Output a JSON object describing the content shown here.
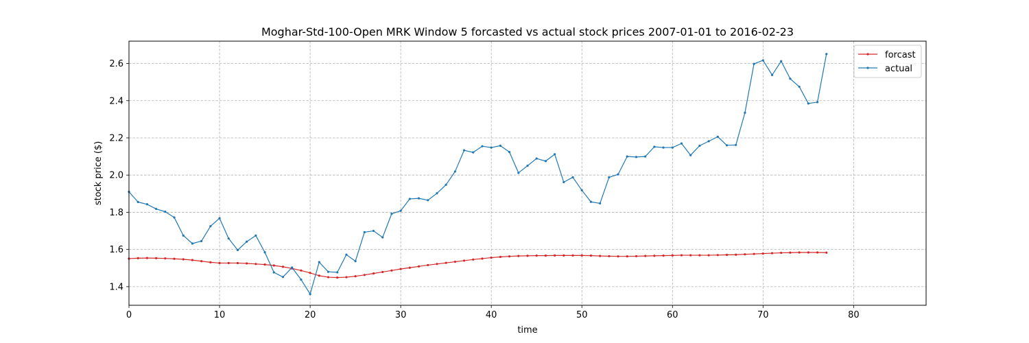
{
  "chart_data": {
    "type": "line",
    "title": "Moghar-Std-100-Open MRK Window 5 forcasted vs actual stock prices 2007-01-01 to 2016-02-23",
    "xlabel": "time",
    "ylabel": "stock price ($)",
    "xlim": [
      0,
      88
    ],
    "ylim": [
      1.3,
      2.72
    ],
    "xticks": [
      0,
      10,
      20,
      30,
      40,
      50,
      60,
      70,
      80
    ],
    "yticks": [
      1.4,
      1.6,
      1.8,
      2.0,
      2.2,
      2.4,
      2.6
    ],
    "grid": true,
    "legend_position": "top-right",
    "series": [
      {
        "name": "forcast",
        "color": "#d62728",
        "values": [
          1.551,
          1.553,
          1.554,
          1.553,
          1.552,
          1.55,
          1.547,
          1.543,
          1.537,
          1.531,
          1.527,
          1.527,
          1.527,
          1.525,
          1.522,
          1.519,
          1.514,
          1.507,
          1.498,
          1.487,
          1.474,
          1.459,
          1.451,
          1.449,
          1.451,
          1.456,
          1.463,
          1.471,
          1.479,
          1.487,
          1.495,
          1.502,
          1.509,
          1.516,
          1.522,
          1.528,
          1.534,
          1.54,
          1.546,
          1.551,
          1.556,
          1.56,
          1.563,
          1.565,
          1.566,
          1.567,
          1.567,
          1.568,
          1.568,
          1.568,
          1.568,
          1.567,
          1.565,
          1.564,
          1.563,
          1.563,
          1.564,
          1.565,
          1.566,
          1.567,
          1.568,
          1.569,
          1.569,
          1.569,
          1.569,
          1.57,
          1.571,
          1.572,
          1.574,
          1.576,
          1.578,
          1.58,
          1.582,
          1.583,
          1.584,
          1.584,
          1.584,
          1.583
        ]
      },
      {
        "name": "actual",
        "color": "#1f77b4",
        "values": [
          1.91,
          1.855,
          1.843,
          1.818,
          1.803,
          1.772,
          1.675,
          1.632,
          1.645,
          1.725,
          1.768,
          1.659,
          1.597,
          1.642,
          1.675,
          1.585,
          1.477,
          1.452,
          1.503,
          1.438,
          1.36,
          1.532,
          1.48,
          1.477,
          1.572,
          1.537,
          1.693,
          1.7,
          1.665,
          1.792,
          1.808,
          1.872,
          1.875,
          1.865,
          1.902,
          1.948,
          2.019,
          2.133,
          2.122,
          2.155,
          2.148,
          2.158,
          2.124,
          2.012,
          2.05,
          2.089,
          2.075,
          2.112,
          1.962,
          1.988,
          1.918,
          1.856,
          1.848,
          1.988,
          2.004,
          2.1,
          2.097,
          2.1,
          2.152,
          2.148,
          2.148,
          2.17,
          2.107,
          2.158,
          2.182,
          2.206,
          2.16,
          2.162,
          2.335,
          2.598,
          2.617,
          2.538,
          2.612,
          2.518,
          2.475,
          2.385,
          2.392,
          2.651
        ]
      }
    ]
  }
}
